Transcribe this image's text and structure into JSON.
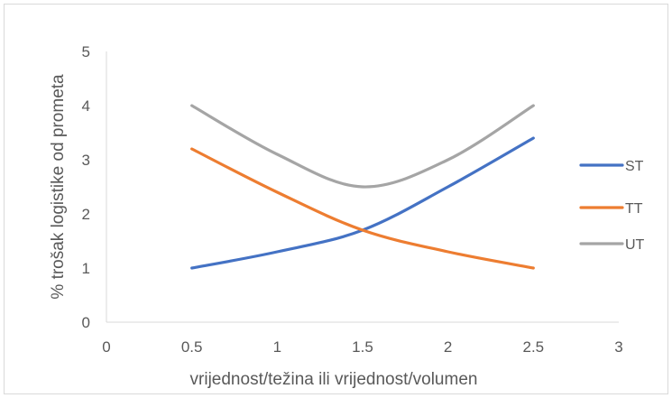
{
  "chart_data": {
    "type": "line",
    "title": "",
    "xlabel": "vrijednost/težina ili vrijednost/volumen",
    "ylabel": "% trošak logistike od prometa",
    "xlim": [
      0,
      3
    ],
    "ylim": [
      0,
      5
    ],
    "x_ticks": [
      "0",
      "0.5",
      "1",
      "1.5",
      "2",
      "2.5",
      "3"
    ],
    "y_ticks": [
      "0",
      "1",
      "2",
      "3",
      "4",
      "5"
    ],
    "grid": false,
    "legend_position": "right",
    "series": [
      {
        "name": "ST",
        "color": "#4472C4",
        "x": [
          0.5,
          1,
          1.5,
          2,
          2.5
        ],
        "y": [
          1.0,
          1.3,
          1.7,
          2.5,
          3.4
        ]
      },
      {
        "name": "TT",
        "color": "#ED7D31",
        "x": [
          0.5,
          1,
          1.5,
          2,
          2.5
        ],
        "y": [
          3.2,
          2.4,
          1.7,
          1.3,
          1.0
        ]
      },
      {
        "name": "UT",
        "color": "#A5A5A5",
        "x": [
          0.5,
          1,
          1.5,
          2,
          2.5
        ],
        "y": [
          4.0,
          3.1,
          2.5,
          3.0,
          4.0
        ]
      }
    ]
  }
}
